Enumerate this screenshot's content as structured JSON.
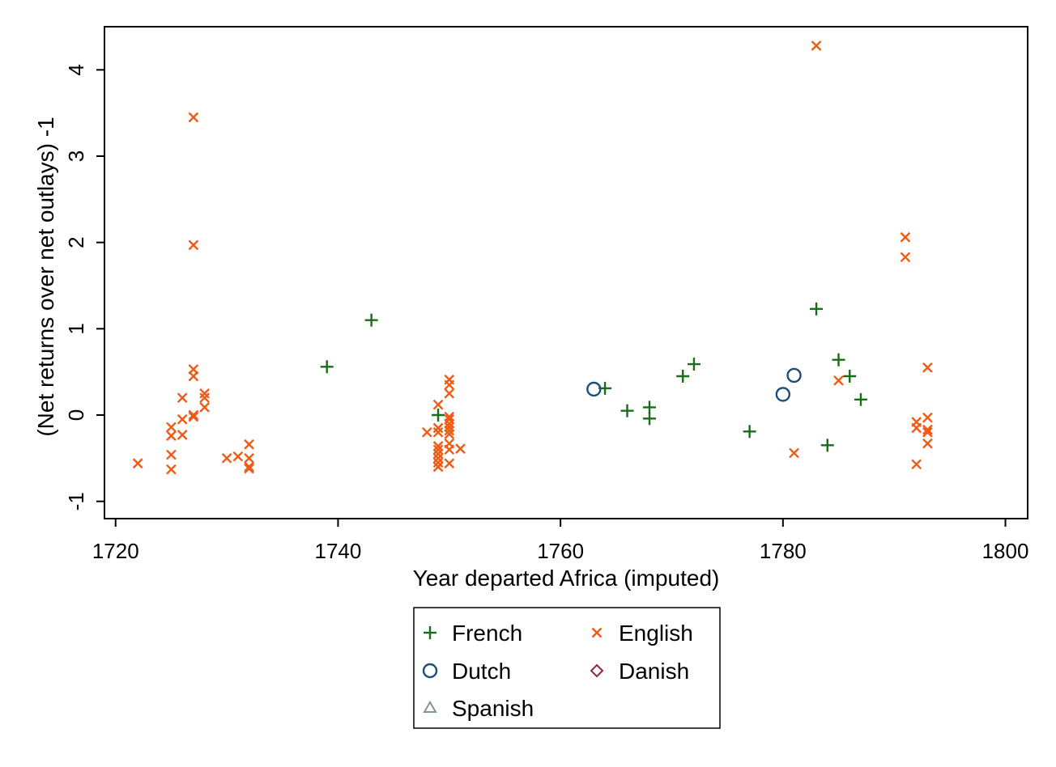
{
  "chart_data": {
    "type": "scatter",
    "title": "",
    "xlabel": "Year departed Africa (imputed)",
    "ylabel": "(Net returns over net outlays) -1",
    "xlim": [
      1719,
      1802
    ],
    "ylim": [
      -1.2,
      4.5
    ],
    "xticks": [
      1720,
      1740,
      1760,
      1780,
      1800
    ],
    "yticks": [
      -1,
      0,
      1,
      2,
      3,
      4
    ],
    "grid": false,
    "legend": {
      "position": "bottom",
      "columns": 2
    },
    "series": [
      {
        "name": "French",
        "marker": "plus",
        "color": "#1a6b1a",
        "points": [
          [
            1739,
            0.56
          ],
          [
            1743,
            1.1
          ],
          [
            1749,
            0.0
          ],
          [
            1764,
            0.31
          ],
          [
            1766,
            0.05
          ],
          [
            1768,
            0.09
          ],
          [
            1768,
            -0.04
          ],
          [
            1771,
            0.45
          ],
          [
            1772,
            0.59
          ],
          [
            1777,
            -0.19
          ],
          [
            1783,
            1.23
          ],
          [
            1784,
            -0.35
          ],
          [
            1785,
            0.64
          ],
          [
            1786,
            0.45
          ],
          [
            1787,
            0.18
          ]
        ]
      },
      {
        "name": "English",
        "marker": "x",
        "color": "#f05a14",
        "points": [
          [
            1722,
            -0.56
          ],
          [
            1725,
            -0.14
          ],
          [
            1725,
            -0.24
          ],
          [
            1725,
            -0.46
          ],
          [
            1725,
            -0.63
          ],
          [
            1726,
            0.2
          ],
          [
            1726,
            -0.05
          ],
          [
            1726,
            -0.23
          ],
          [
            1727,
            3.45
          ],
          [
            1727,
            1.97
          ],
          [
            1727,
            0.53
          ],
          [
            1727,
            0.45
          ],
          [
            1727,
            0.0
          ],
          [
            1727,
            -0.02
          ],
          [
            1728,
            0.25
          ],
          [
            1728,
            0.2
          ],
          [
            1728,
            0.09
          ],
          [
            1730,
            -0.5
          ],
          [
            1731,
            -0.48
          ],
          [
            1732,
            -0.34
          ],
          [
            1732,
            -0.5
          ],
          [
            1732,
            -0.6
          ],
          [
            1732,
            -0.62
          ],
          [
            1748,
            -0.2
          ],
          [
            1749,
            0.12
          ],
          [
            1749,
            -0.15
          ],
          [
            1749,
            -0.2
          ],
          [
            1749,
            -0.36
          ],
          [
            1749,
            -0.4
          ],
          [
            1749,
            -0.45
          ],
          [
            1749,
            -0.5
          ],
          [
            1749,
            -0.55
          ],
          [
            1749,
            -0.6
          ],
          [
            1750,
            0.41
          ],
          [
            1750,
            0.35
          ],
          [
            1750,
            0.25
          ],
          [
            1750,
            -0.02
          ],
          [
            1750,
            -0.05
          ],
          [
            1750,
            -0.1
          ],
          [
            1750,
            -0.14
          ],
          [
            1750,
            -0.18
          ],
          [
            1750,
            -0.22
          ],
          [
            1750,
            -0.33
          ],
          [
            1750,
            -0.4
          ],
          [
            1750,
            -0.56
          ],
          [
            1751,
            -0.39
          ],
          [
            1781,
            -0.44
          ],
          [
            1783,
            4.28
          ],
          [
            1785,
            0.4
          ],
          [
            1791,
            2.06
          ],
          [
            1791,
            1.83
          ],
          [
            1792,
            -0.08
          ],
          [
            1792,
            -0.15
          ],
          [
            1792,
            -0.57
          ],
          [
            1793,
            0.55
          ],
          [
            1793,
            -0.03
          ],
          [
            1793,
            -0.17
          ],
          [
            1793,
            -0.2
          ],
          [
            1793,
            -0.33
          ]
        ]
      },
      {
        "name": "Dutch",
        "marker": "circle",
        "color": "#1f4e79",
        "points": [
          [
            1763,
            0.3
          ],
          [
            1780,
            0.24
          ],
          [
            1781,
            0.46
          ]
        ]
      },
      {
        "name": "Danish",
        "marker": "diamond",
        "color": "#8b2a3a",
        "points": []
      },
      {
        "name": "Spanish",
        "marker": "triangle",
        "color": "#7a9a8a",
        "points": []
      }
    ]
  }
}
